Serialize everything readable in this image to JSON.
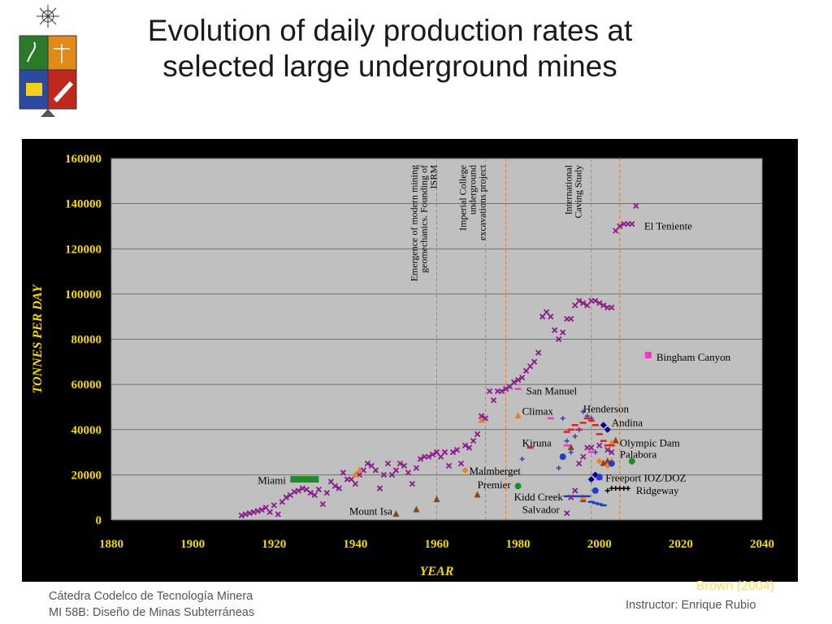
{
  "slide": {
    "title_line1": "Evolution of daily production rates at",
    "title_line2": "selected large underground mines",
    "footer_line1": "Cátedra Codelco de Tecnología Minera",
    "footer_line2": "MI 58B: Diseño de Minas Subterráneas",
    "instructor": "Instructor: Enrique Rubio",
    "credit": "Brown (2004)"
  },
  "chart_data": {
    "type": "scatter",
    "title": "",
    "xlabel": "YEAR",
    "ylabel": "TONNES PER DAY",
    "xlim": [
      1880,
      2040
    ],
    "ylim": [
      0,
      160000
    ],
    "x_ticks": [
      "1880",
      "1900",
      "1920",
      "1940",
      "1960",
      "1980",
      "2000",
      "2020",
      "2040"
    ],
    "y_ticks": [
      "0",
      "20000",
      "40000",
      "60000",
      "80000",
      "100000",
      "120000",
      "140000",
      "160000"
    ],
    "grid": "horizontal",
    "legend": "none",
    "colors": {
      "plot_bg": "#c0c0c0",
      "frame_bg": "#000000",
      "axis_text": "#f5d800",
      "event_line": "#e07a2a",
      "el_teniente": "#8b1a8b"
    },
    "events": [
      {
        "x": 1960,
        "label_lines": [
          "Emergence of modern mining",
          "geomechanics. Founding of",
          "ISRM"
        ]
      },
      {
        "x": 1972,
        "label_lines": [
          "Imperial College",
          "underground",
          "excavations project"
        ]
      },
      {
        "x": 1977,
        "label_lines": []
      },
      {
        "x": 1998,
        "label_lines": [
          "International",
          "Caving Study"
        ]
      },
      {
        "x": 2005,
        "label_lines": []
      }
    ],
    "labels": [
      {
        "text": "El Teniente",
        "x": 2011,
        "y": 130000
      },
      {
        "text": "Bingham Canyon",
        "x": 2014,
        "y": 72000
      },
      {
        "text": "San Manuel",
        "x": 1982,
        "y": 57000
      },
      {
        "text": "Climax",
        "x": 1981,
        "y": 48000
      },
      {
        "text": "Henderson",
        "x": 1996,
        "y": 49000
      },
      {
        "text": "Andina",
        "x": 2003,
        "y": 43000
      },
      {
        "text": "Kiruna",
        "x": 1981,
        "y": 34000
      },
      {
        "text": "Olympic Dam",
        "x": 2005,
        "y": 34000
      },
      {
        "text": "Palabora",
        "x": 2005,
        "y": 29000
      },
      {
        "text": "Malmberget",
        "x": 1968,
        "y": 21500
      },
      {
        "text": "Premier",
        "x": 1970,
        "y": 15500
      },
      {
        "text": "Freeport IOZ/DOZ",
        "x": 2001.5,
        "y": 18500
      },
      {
        "text": "Ridgeway",
        "x": 2009,
        "y": 13000
      },
      {
        "text": "Kidd Creek",
        "x": 1979,
        "y": 10000
      },
      {
        "text": "Salvador",
        "x": 1981,
        "y": 4500
      },
      {
        "text": "Miami",
        "x": 1916,
        "y": 17500
      },
      {
        "text": "Mount Isa",
        "x": 1938.5,
        "y": 3800
      }
    ],
    "series": [
      {
        "name": "El Teniente",
        "marker": "x",
        "color": "#8b1a8b",
        "points": [
          [
            1912,
            2000
          ],
          [
            1913,
            2500
          ],
          [
            1914,
            3000
          ],
          [
            1915,
            3500
          ],
          [
            1916,
            4000
          ],
          [
            1917,
            4500
          ],
          [
            1918,
            5500
          ],
          [
            1919,
            3500
          ],
          [
            1920,
            6500
          ],
          [
            1921,
            2500
          ],
          [
            1922,
            8000
          ],
          [
            1923,
            10000
          ],
          [
            1924,
            11000
          ],
          [
            1925,
            12500
          ],
          [
            1926,
            13000
          ],
          [
            1927,
            14000
          ],
          [
            1928,
            13500
          ],
          [
            1929,
            12000
          ],
          [
            1930,
            11000
          ],
          [
            1931,
            13500
          ],
          [
            1932,
            7000
          ],
          [
            1933,
            12000
          ],
          [
            1934,
            17000
          ],
          [
            1935,
            15000
          ],
          [
            1936,
            14000
          ],
          [
            1937,
            21000
          ],
          [
            1938,
            18000
          ],
          [
            1939,
            18000
          ],
          [
            1940,
            16000
          ],
          [
            1941,
            20000
          ],
          [
            1942,
            22000
          ],
          [
            1943,
            25000
          ],
          [
            1944,
            24000
          ],
          [
            1945,
            22000
          ],
          [
            1946,
            14000
          ],
          [
            1947,
            20000
          ],
          [
            1948,
            25000
          ],
          [
            1949,
            20000
          ],
          [
            1950,
            22000
          ],
          [
            1951,
            25000
          ],
          [
            1952,
            24000
          ],
          [
            1953,
            21000
          ],
          [
            1954,
            16000
          ],
          [
            1955,
            23000
          ],
          [
            1956,
            27000
          ],
          [
            1957,
            28000
          ],
          [
            1958,
            28000
          ],
          [
            1959,
            29000
          ],
          [
            1960,
            30000
          ],
          [
            1961,
            28000
          ],
          [
            1962,
            30000
          ],
          [
            1963,
            24000
          ],
          [
            1964,
            30000
          ],
          [
            1965,
            31000
          ],
          [
            1966,
            25000
          ],
          [
            1967,
            33000
          ],
          [
            1968,
            32000
          ],
          [
            1969,
            35000
          ],
          [
            1970,
            38000
          ],
          [
            1971,
            46000
          ],
          [
            1972,
            45000
          ],
          [
            1973,
            57000
          ],
          [
            1974,
            53000
          ],
          [
            1975,
            57000
          ],
          [
            1976,
            57000
          ],
          [
            1977,
            58000
          ],
          [
            1978,
            59000
          ],
          [
            1979,
            61000
          ],
          [
            1980,
            62000
          ],
          [
            1981,
            63000
          ],
          [
            1982,
            66000
          ],
          [
            1983,
            68000
          ],
          [
            1984,
            70000
          ],
          [
            1985,
            74000
          ],
          [
            1986,
            90000
          ],
          [
            1987,
            92000
          ],
          [
            1988,
            90000
          ],
          [
            1989,
            84000
          ],
          [
            1990,
            80000
          ],
          [
            1991,
            83000
          ],
          [
            1992,
            89000
          ],
          [
            1993,
            89000
          ],
          [
            1994,
            95000
          ],
          [
            1995,
            97000
          ],
          [
            1996,
            96000
          ],
          [
            1997,
            95000
          ],
          [
            1998,
            97000
          ],
          [
            1999,
            97000
          ],
          [
            2000,
            96000
          ],
          [
            2001,
            95000
          ],
          [
            2002,
            94000
          ],
          [
            2003,
            94000
          ],
          [
            2004,
            128000
          ],
          [
            2005,
            130000
          ],
          [
            2006,
            131000
          ],
          [
            2007,
            131000
          ],
          [
            2008,
            131000
          ],
          [
            2009,
            139000
          ]
        ]
      },
      {
        "name": "Bingham Canyon",
        "marker": "square",
        "color": "#ff33cc",
        "points": [
          [
            2012,
            73000
          ]
        ]
      },
      {
        "name": "Miami",
        "marker": "bar",
        "color": "#1e8c2a",
        "points": [
          [
            1924,
            18000
          ],
          [
            1931,
            18000
          ]
        ]
      },
      {
        "name": "Mount Isa",
        "marker": "triangle",
        "color": "#8b4513",
        "points": [
          [
            1950,
            2500
          ],
          [
            1955,
            4500
          ],
          [
            1960,
            9000
          ],
          [
            1970,
            11000
          ],
          [
            1993,
            32000
          ],
          [
            1996,
            9000
          ],
          [
            2001,
            25000
          ],
          [
            2002,
            26000
          ],
          [
            2004,
            35000
          ]
        ]
      },
      {
        "name": "Climax",
        "marker": "triangle",
        "color": "#f07f2a",
        "points": [
          [
            1940,
            20000
          ],
          [
            1941,
            22000
          ],
          [
            1971,
            44000
          ],
          [
            1980,
            46000
          ],
          [
            1996,
            10000
          ],
          [
            2003,
            26000
          ],
          [
            2003,
            34000
          ]
        ]
      },
      {
        "name": "Malmberget",
        "marker": "diamond",
        "color": "#f07f2a",
        "points": [
          [
            1967,
            22000
          ],
          [
            2000,
            26000
          ],
          [
            2002,
            24000
          ]
        ]
      },
      {
        "name": "Henderson",
        "marker": "plus",
        "color": "#3a3ab0",
        "points": [
          [
            1981,
            27000
          ],
          [
            1990,
            23000
          ],
          [
            1991,
            45000
          ],
          [
            1992,
            35000
          ],
          [
            1993,
            30000
          ],
          [
            1994,
            37000
          ],
          [
            1995,
            40000
          ],
          [
            1996,
            48000
          ],
          [
            1997,
            46000
          ],
          [
            1998,
            45000
          ],
          [
            1999,
            30000
          ]
        ]
      },
      {
        "name": "Kiruna",
        "marker": "dash",
        "color": "#e0201e",
        "points": [
          [
            1983,
            32000
          ],
          [
            1992,
            39000
          ],
          [
            1993,
            40000
          ],
          [
            1994,
            42000
          ],
          [
            1995,
            40000
          ],
          [
            1996,
            43000
          ],
          [
            1997,
            45000
          ],
          [
            1998,
            44000
          ],
          [
            1999,
            42000
          ],
          [
            2000,
            38000
          ],
          [
            2001,
            35000
          ],
          [
            2002,
            33000
          ],
          [
            2003,
            33000
          ]
        ]
      },
      {
        "name": "San Manuel",
        "marker": "dash",
        "color": "#ff33cc",
        "points": [
          [
            1980,
            58000
          ],
          [
            1988,
            45000
          ],
          [
            1992,
            33000
          ],
          [
            1999,
            20000
          ],
          [
            2000,
            18000
          ],
          [
            1998,
            30000
          ]
        ]
      },
      {
        "name": "Andina",
        "marker": "diamond",
        "color": "#00008b",
        "points": [
          [
            2001,
            42000
          ],
          [
            2002,
            40000
          ],
          [
            1999,
            20000
          ],
          [
            1998,
            18000
          ]
        ]
      },
      {
        "name": "Olympic Dam",
        "marker": "circle",
        "color": "#1a3fcf",
        "points": [
          [
            1991,
            28000
          ],
          [
            2000,
            19000
          ],
          [
            2003,
            25000
          ],
          [
            1999,
            13000
          ]
        ]
      },
      {
        "name": "Palabora",
        "marker": "circle",
        "color": "#1e8c2a",
        "points": [
          [
            1980,
            15000
          ],
          [
            2008,
            26000
          ]
        ]
      },
      {
        "name": "Freeport IOZ/DOZ",
        "marker": "dash",
        "color": "#1a3fcf",
        "points": [
          [
            1992,
            10500
          ],
          [
            1993,
            10500
          ],
          [
            1994,
            10500
          ],
          [
            1995,
            10500
          ],
          [
            1996,
            10500
          ],
          [
            1997,
            10500
          ],
          [
            1998,
            8000
          ],
          [
            1999,
            7500
          ],
          [
            2000,
            7000
          ],
          [
            2001,
            6500
          ]
        ]
      },
      {
        "name": "Ridgeway",
        "marker": "plus",
        "color": "#000000",
        "points": [
          [
            2002,
            13000
          ],
          [
            2003,
            14000
          ],
          [
            2004,
            14000
          ],
          [
            2005,
            14000
          ],
          [
            2006,
            14000
          ],
          [
            2007,
            14000
          ]
        ]
      },
      {
        "name": "Salvador",
        "marker": "x",
        "color": "#8b1a8b",
        "points": [
          [
            1992,
            3000
          ],
          [
            1993,
            10000
          ],
          [
            1994,
            13000
          ],
          [
            1995,
            25000
          ],
          [
            1996,
            28000
          ],
          [
            1997,
            32000
          ],
          [
            1998,
            32000
          ],
          [
            2000,
            33000
          ],
          [
            2002,
            31000
          ],
          [
            2003,
            30000
          ]
        ]
      }
    ]
  }
}
